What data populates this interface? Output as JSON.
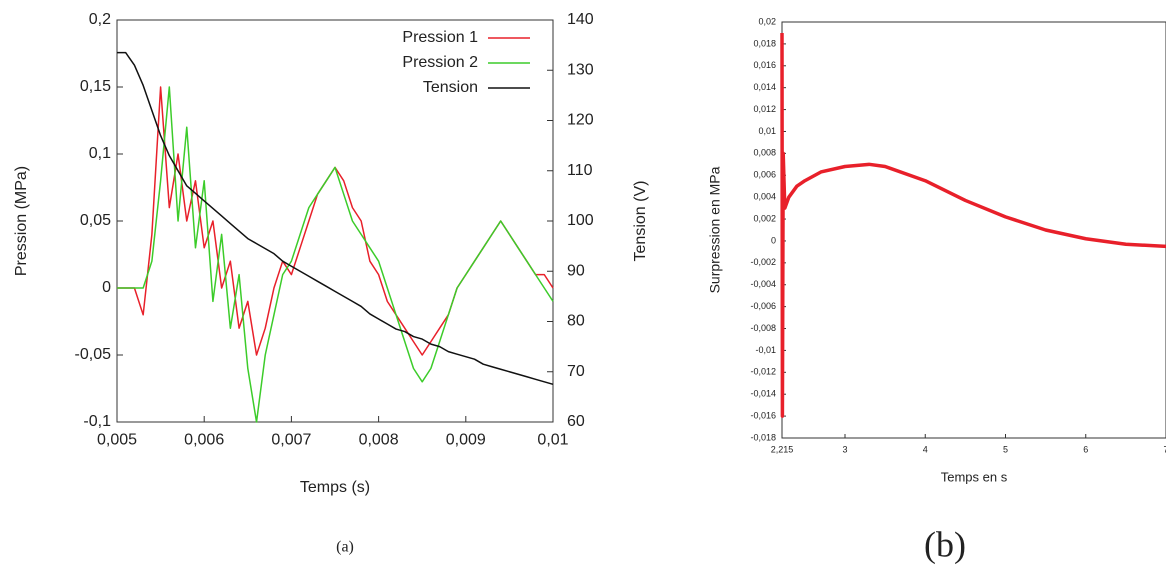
{
  "chart_data": [
    {
      "type": "line",
      "x": [
        0.005,
        0.0051,
        0.0052,
        0.0053,
        0.0054,
        0.0055,
        0.0056,
        0.0057,
        0.0058,
        0.0059,
        0.006,
        0.0061,
        0.0062,
        0.0063,
        0.0064,
        0.0065,
        0.0066,
        0.0067,
        0.0068,
        0.0069,
        0.007,
        0.0071,
        0.0072,
        0.0073,
        0.0074,
        0.0075,
        0.0076,
        0.0077,
        0.0078,
        0.0079,
        0.008,
        0.0081,
        0.0082,
        0.0083,
        0.0084,
        0.0085,
        0.0086,
        0.0087,
        0.0088,
        0.0089,
        0.009,
        0.0091,
        0.0092,
        0.0093,
        0.0094,
        0.0095,
        0.0096,
        0.0097,
        0.0098,
        0.0099,
        0.01
      ],
      "series": [
        {
          "name": "Pression 1",
          "color": "#e8202a",
          "values": [
            0,
            0,
            0,
            -0.02,
            0.04,
            0.15,
            0.06,
            0.1,
            0.05,
            0.08,
            0.03,
            0.05,
            0,
            0.02,
            -0.03,
            -0.01,
            -0.05,
            -0.03,
            0,
            0.02,
            0.01,
            0.03,
            0.05,
            0.07,
            0.08,
            0.09,
            0.08,
            0.06,
            0.05,
            0.02,
            0.01,
            -0.01,
            -0.02,
            -0.03,
            -0.04,
            -0.05,
            -0.04,
            -0.03,
            -0.02,
            0,
            0.01,
            0.02,
            0.03,
            0.04,
            0.05,
            0.04,
            0.03,
            0.02,
            0.01,
            0.01,
            0
          ]
        },
        {
          "name": "Pression 2",
          "color": "#3ccc2a",
          "values": [
            0,
            0,
            0,
            0,
            0.02,
            0.08,
            0.15,
            0.05,
            0.12,
            0.03,
            0.08,
            -0.01,
            0.04,
            -0.03,
            0.01,
            -0.06,
            -0.1,
            -0.05,
            -0.02,
            0.01,
            0.02,
            0.04,
            0.06,
            0.07,
            0.08,
            0.09,
            0.07,
            0.05,
            0.04,
            0.03,
            0.02,
            0,
            -0.02,
            -0.04,
            -0.06,
            -0.07,
            -0.06,
            -0.04,
            -0.02,
            0,
            0.01,
            0.02,
            0.03,
            0.04,
            0.05,
            0.04,
            0.03,
            0.02,
            0.01,
            0,
            -0.01
          ]
        },
        {
          "name": "Tension",
          "color": "#111111",
          "axis": "y2",
          "values": [
            133.5,
            133.5,
            131,
            127,
            122,
            117,
            113,
            110,
            107,
            105.5,
            104,
            102.5,
            101,
            99.5,
            98,
            96.5,
            95.5,
            94.5,
            93.5,
            92,
            91,
            90,
            89,
            88,
            87,
            86,
            85,
            84,
            83,
            81.5,
            80.5,
            79.5,
            78.5,
            78,
            77,
            76.5,
            75.5,
            75,
            74,
            73.5,
            73,
            72.5,
            71.5,
            71,
            70.5,
            70,
            69.5,
            69,
            68.5,
            68,
            67.5
          ]
        }
      ],
      "xlim": [
        0.005,
        0.01
      ],
      "xticks": [
        {
          "value": 0.005,
          "label": "0,005"
        },
        {
          "value": 0.006,
          "label": "0,006"
        },
        {
          "value": 0.007,
          "label": "0,007"
        },
        {
          "value": 0.008,
          "label": "0,008"
        },
        {
          "value": 0.009,
          "label": "0,009"
        },
        {
          "value": 0.01,
          "label": "0,01"
        }
      ],
      "ylim": [
        -0.1,
        0.2
      ],
      "yticks": [
        {
          "value": -0.1,
          "label": "-0,1"
        },
        {
          "value": -0.05,
          "label": "-0,05"
        },
        0,
        {
          "value": 0.05,
          "label": "0,05"
        },
        {
          "value": 0.1,
          "label": "0,1"
        },
        {
          "value": 0.15,
          "label": "0,15"
        },
        {
          "value": 0.2,
          "label": "0,2"
        }
      ],
      "y2lim": [
        60,
        140
      ],
      "y2ticks": [
        60,
        70,
        80,
        90,
        100,
        110,
        120,
        130,
        140
      ],
      "xlabel": "Temps (s)",
      "ylabel": "Pression (MPa)",
      "y2label": "Tension (V)",
      "legend": "upper right",
      "caption": "(a)"
    },
    {
      "type": "line",
      "x": [
        2.215,
        2.22,
        2.23,
        2.25,
        2.3,
        2.4,
        2.5,
        2.7,
        3,
        3.3,
        3.5,
        4,
        4.5,
        5,
        5.5,
        6,
        6.5,
        7
      ],
      "series": [
        {
          "name": "Surpression",
          "color": "#e8202a",
          "values": [
            0.019,
            -0.016,
            0.008,
            0.003,
            0.004,
            0.005,
            0.0055,
            0.0063,
            0.0068,
            0.007,
            0.0068,
            0.0055,
            0.0037,
            0.0022,
            0.001,
            0.0002,
            -0.0003,
            -0.0005
          ]
        }
      ],
      "xlim": [
        2.215,
        7
      ],
      "xticks": [
        {
          "value": 2.215,
          "label": "2,215"
        },
        3,
        4,
        5,
        6,
        7
      ],
      "ylim": [
        -0.018,
        0.02
      ],
      "yticks": [
        {
          "value": 0.02,
          "label": "0,02"
        },
        {
          "value": 0.018,
          "label": "0,018"
        },
        {
          "value": 0.016,
          "label": "0,016"
        },
        {
          "value": 0.014,
          "label": "0,014"
        },
        {
          "value": 0.012,
          "label": "0,012"
        },
        {
          "value": 0.01,
          "label": "0,01"
        },
        {
          "value": 0.008,
          "label": "0,008"
        },
        {
          "value": 0.006,
          "label": "0,006"
        },
        {
          "value": 0.004,
          "label": "0,004"
        },
        {
          "value": 0.002,
          "label": "0,002"
        },
        0,
        {
          "value": -0.002,
          "label": "-0,002"
        },
        {
          "value": -0.004,
          "label": "-0,004"
        },
        {
          "value": -0.006,
          "label": "-0,006"
        },
        {
          "value": -0.008,
          "label": "-0,008"
        },
        {
          "value": -0.01,
          "label": "-0,01"
        },
        {
          "value": -0.012,
          "label": "-0,012"
        },
        {
          "value": -0.014,
          "label": "-0,014"
        },
        {
          "value": -0.016,
          "label": "-0,016"
        },
        {
          "value": -0.018,
          "label": "-0,018"
        }
      ],
      "xlabel": "Temps en s",
      "ylabel": "Surpression en MPa",
      "caption": "(b)"
    }
  ]
}
